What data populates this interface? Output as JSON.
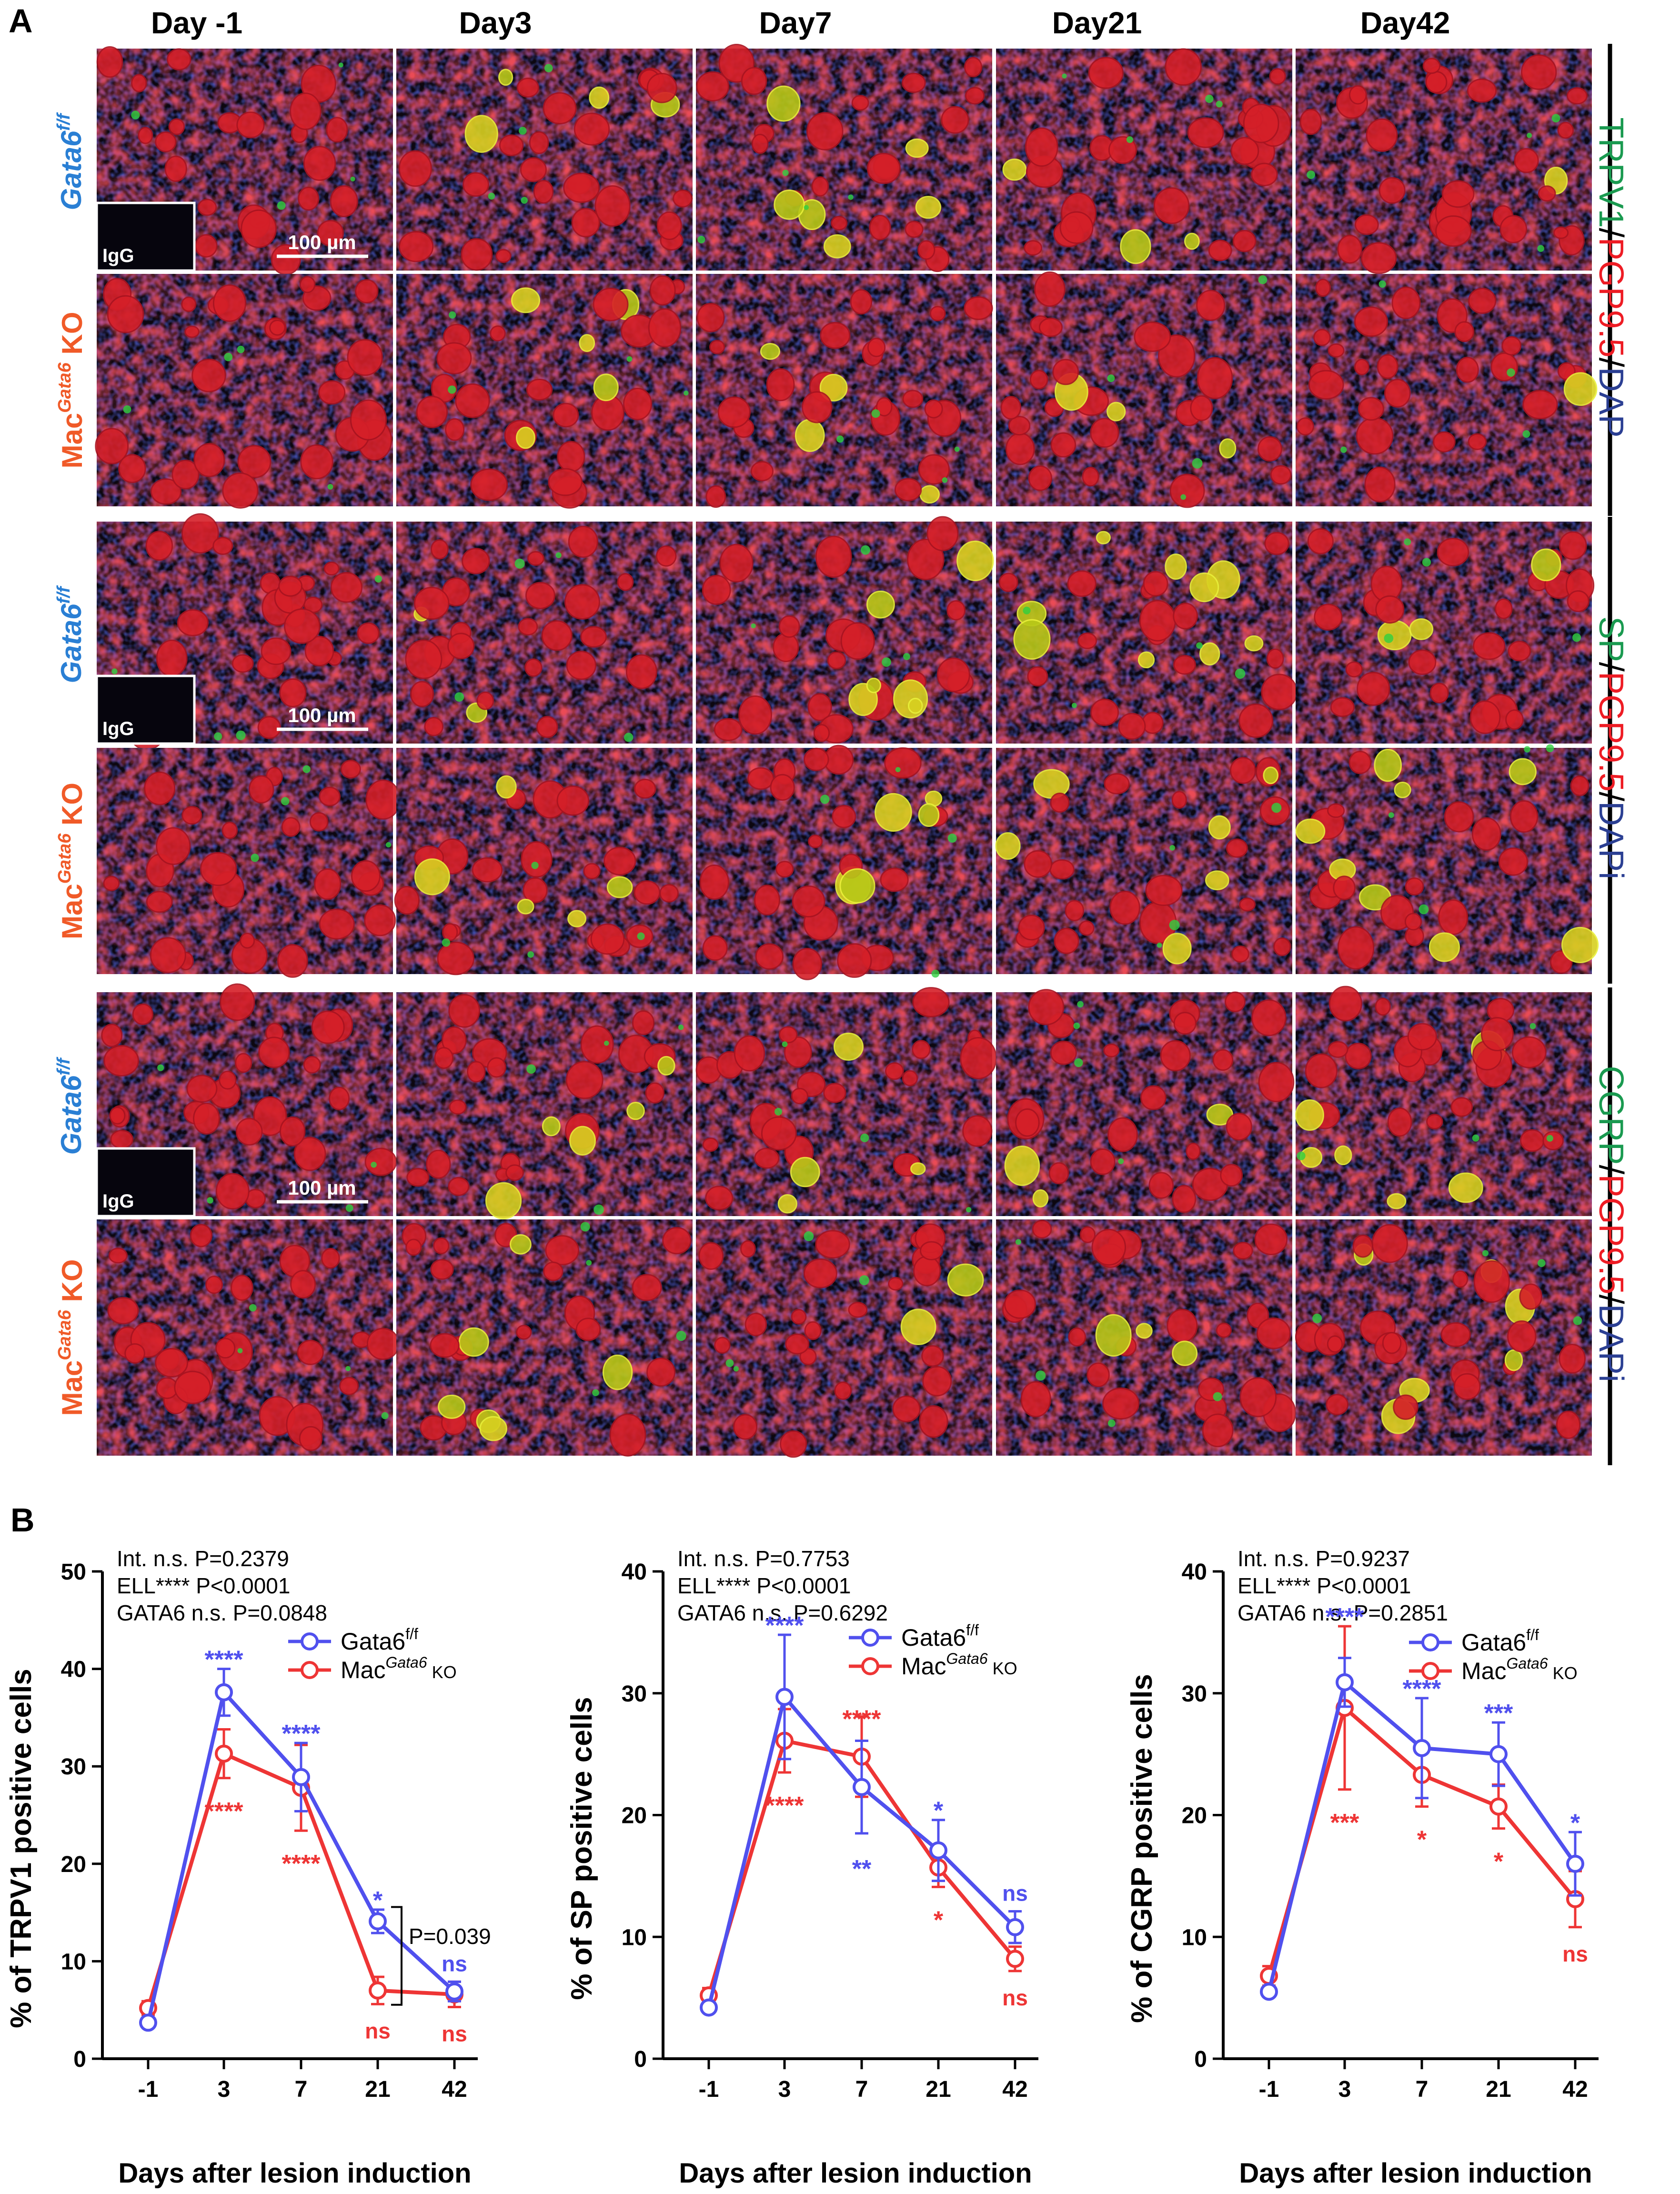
{
  "panels": {
    "a_label": "A",
    "b_label": "B"
  },
  "columns": [
    "Day -1",
    "Day3",
    "Day7",
    "Day21",
    "Day42"
  ],
  "rows": {
    "control": {
      "italic": "Gata6",
      "sup": "f/f"
    },
    "ko": {
      "base": "Mac",
      "sup": "Gata6",
      "suffix": " KO"
    }
  },
  "inset_label": "IgG",
  "scale_bar": "100 µm",
  "stain_groups": [
    {
      "marker": "TRPV1",
      "sep1": "/",
      "pgp": "PGP9.5",
      "sep2": "/",
      "dapi": "DAP"
    },
    {
      "marker": "SP",
      "sep1": "/",
      "pgp": "PGP9.5",
      "sep2": "/",
      "dapi": "DAPi"
    },
    {
      "marker": "CGRP",
      "sep1": "/",
      "pgp": "PGP9.5",
      "sep2": "/",
      "dapi": "DAPi"
    }
  ],
  "legend": {
    "s1_base": "Gata6",
    "s1_sup": "f/f",
    "s2_base": "Mac",
    "s2_sup": "Gata6",
    "s2_suffix": " KO"
  },
  "colors": {
    "gata6": "#5050ee",
    "mac_ko": "#ee3535",
    "control_label": "#2a7fd4",
    "ko_label": "#f05a28",
    "trpv1_green": "#1a9a50",
    "pgp_red": "#ee1c24",
    "dapi_blue": "#2b3f93"
  },
  "chart_data": [
    {
      "type": "line",
      "ylabel": "% of TRPV1 positive cells",
      "xlabel": "Days after lesion induction",
      "x": [
        "-1",
        "3",
        "7",
        "21",
        "42"
      ],
      "ylim": [
        0,
        50
      ],
      "yticks": [
        "0",
        "10",
        "20",
        "30",
        "40",
        "50"
      ],
      "stats": [
        "Int. n.s. P=0.2379",
        "ELL**** P<0.0001",
        "GATA6 n.s. P=0.0848"
      ],
      "series": [
        {
          "name": "Gata6f/f",
          "values": [
            3.7,
            37.6,
            28.9,
            14.1,
            6.9
          ],
          "errors": [
            0.4,
            2.4,
            3.5,
            1.2,
            1.0
          ]
        },
        {
          "name": "MacGata6 KO",
          "values": [
            5.2,
            31.3,
            27.8,
            7.0,
            6.6
          ],
          "errors": [
            0.7,
            2.5,
            4.4,
            1.4,
            1.3
          ]
        }
      ],
      "sig_gata6": [
        "",
        "****",
        "****",
        "*",
        "ns"
      ],
      "sig_ko": [
        "",
        "****",
        "****",
        "ns",
        "ns"
      ],
      "bracket": "P=0.039"
    },
    {
      "type": "line",
      "ylabel": "% of SP positive cells",
      "xlabel": "Days after lesion induction",
      "x": [
        "-1",
        "3",
        "7",
        "21",
        "42"
      ],
      "ylim": [
        0,
        40
      ],
      "yticks": [
        "0",
        "10",
        "20",
        "30",
        "40"
      ],
      "stats": [
        "Int. n.s. P=0.7753",
        "ELL**** P<0.0001",
        "GATA6 n.s. P=0.6292"
      ],
      "series": [
        {
          "name": "Gata6f/f",
          "values": [
            4.2,
            29.7,
            22.3,
            17.1,
            10.8
          ],
          "errors": [
            0.4,
            5.1,
            3.8,
            2.5,
            1.3
          ]
        },
        {
          "name": "MacGata6 KO",
          "values": [
            5.2,
            26.1,
            24.8,
            15.7,
            8.2
          ],
          "errors": [
            0.6,
            2.6,
            3.3,
            1.6,
            1.0
          ]
        }
      ],
      "sig_gata6": [
        "",
        "****",
        "**",
        "*",
        "ns"
      ],
      "sig_ko": [
        "",
        "****",
        "****",
        "*",
        "ns"
      ]
    },
    {
      "type": "line",
      "ylabel": "% of CGRP positive cells",
      "xlabel": "Days after lesion induction",
      "x": [
        "-1",
        "3",
        "7",
        "21",
        "42"
      ],
      "ylim": [
        0,
        40
      ],
      "yticks": [
        "0",
        "10",
        "20",
        "30",
        "40"
      ],
      "stats": [
        "Int. n.s. P=0.9237",
        "ELL**** P<0.0001",
        "GATA6 n.s. P=0.2851"
      ],
      "series": [
        {
          "name": "Gata6f/f",
          "values": [
            5.5,
            30.9,
            25.5,
            25.0,
            16.0
          ],
          "errors": [
            0.4,
            2.0,
            4.1,
            2.6,
            2.6
          ]
        },
        {
          "name": "MacGata6 KO",
          "values": [
            6.8,
            28.8,
            23.3,
            20.7,
            13.1
          ],
          "errors": [
            0.8,
            6.7,
            2.6,
            1.8,
            2.3
          ]
        }
      ],
      "sig_gata6": [
        "",
        "****",
        "****",
        "***",
        "*"
      ],
      "sig_ko": [
        "",
        "***",
        "*",
        "*",
        "ns"
      ]
    }
  ]
}
